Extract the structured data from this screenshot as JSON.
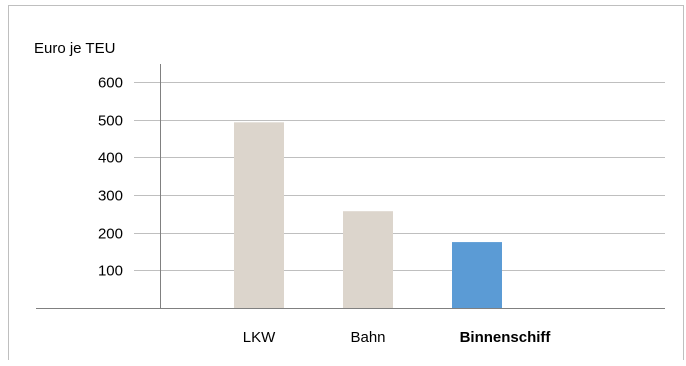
{
  "chart_data": {
    "type": "bar",
    "ylabel": "Euro je TEU",
    "categories": [
      "LKW",
      "Bahn",
      "Binnenschiff"
    ],
    "values": [
      493,
      257,
      175
    ],
    "ylim": [
      0,
      600
    ],
    "yticks": [
      100,
      200,
      300,
      400,
      500,
      600
    ],
    "grid": true,
    "highlight": "Binnenschiff",
    "colors": {
      "default": "#dcd5cc",
      "highlight": "#5b9bd5",
      "grid": "#bfbfbf",
      "axis": "#808080"
    }
  }
}
